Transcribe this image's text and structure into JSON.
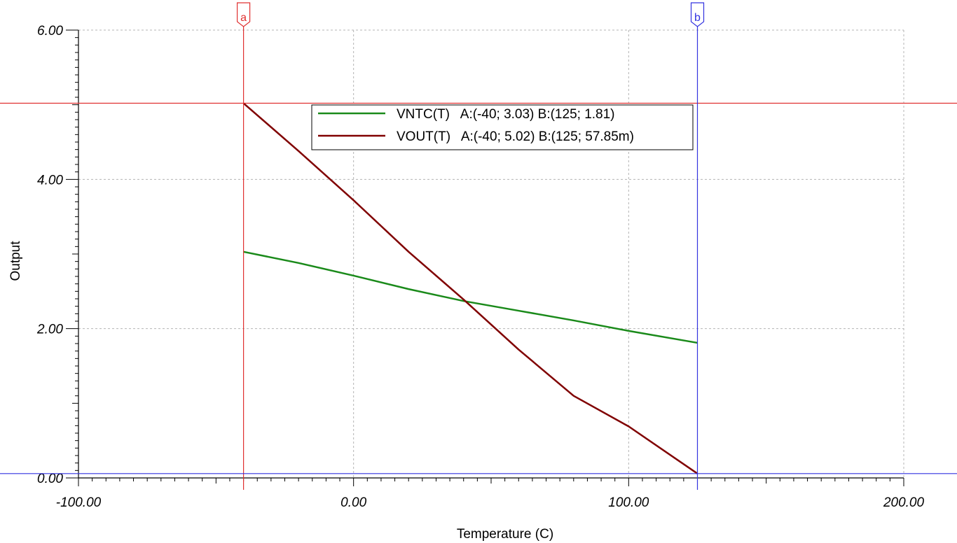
{
  "chart_data": {
    "type": "line",
    "xlabel": "Temperature (C)",
    "ylabel": "Output",
    "xlim": [
      -100,
      200
    ],
    "ylim": [
      0,
      6
    ],
    "x_ticks": [
      -100,
      0,
      100,
      200
    ],
    "x_tick_labels": [
      "-100.00",
      "0.00",
      "100.00",
      "200.00"
    ],
    "y_ticks": [
      0,
      2,
      4,
      6
    ],
    "y_tick_labels": [
      "0.00",
      "2.00",
      "4.00",
      "6.00"
    ],
    "grid": true,
    "legend_position": "top-center",
    "series": [
      {
        "name": "VNTC(T)",
        "legend_label": "VNTC(T)   A:(-40; 3.03) B:(125; 1.81)",
        "color": "#1a8a1a",
        "x": [
          -40,
          -20,
          0,
          20,
          40,
          60,
          80,
          100,
          125
        ],
        "y": [
          3.03,
          2.88,
          2.71,
          2.53,
          2.37,
          2.24,
          2.11,
          1.97,
          1.81
        ]
      },
      {
        "name": "VOUT(T)",
        "legend_label": "VOUT(T)   A:(-40; 5.02) B:(125; 57.85m)",
        "color": "#800000",
        "x": [
          -40,
          -20,
          0,
          20,
          40,
          60,
          80,
          100,
          125
        ],
        "y": [
          5.02,
          4.38,
          3.72,
          3.03,
          2.39,
          1.72,
          1.1,
          0.69,
          0.05785
        ]
      }
    ],
    "cursors": [
      {
        "label": "a",
        "x": -40,
        "y": 5.02,
        "color": "#e03030"
      },
      {
        "label": "b",
        "x": 125,
        "y": 0.05785,
        "color": "#3333e0"
      }
    ]
  }
}
